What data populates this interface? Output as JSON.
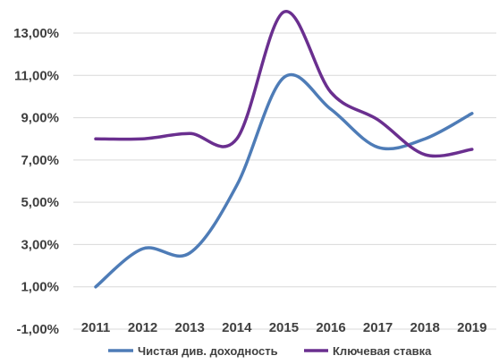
{
  "chart_data": {
    "type": "line",
    "categories": [
      "2011",
      "2012",
      "2013",
      "2014",
      "2015",
      "2016",
      "2017",
      "2018",
      "2019"
    ],
    "y_tick_labels": [
      "-1,00%",
      "1,00%",
      "3,00%",
      "5,00%",
      "7,00%",
      "9,00%",
      "11,00%",
      "13,00%"
    ],
    "y_ticks": [
      -1,
      1,
      3,
      5,
      7,
      9,
      11,
      13
    ],
    "ylim": [
      -1,
      14
    ],
    "grid": true,
    "legend_position": "bottom",
    "series": [
      {
        "name": "Чистая див. доходность",
        "color": "#4e7cb7",
        "values": [
          1.0,
          2.8,
          2.6,
          5.8,
          10.9,
          9.4,
          7.6,
          8.0,
          9.2
        ]
      },
      {
        "name": "Ключевая ставка",
        "color": "#6a2f8f",
        "values": [
          8.0,
          8.0,
          8.25,
          8.0,
          14.0,
          10.2,
          8.9,
          7.25,
          7.5
        ]
      }
    ]
  }
}
